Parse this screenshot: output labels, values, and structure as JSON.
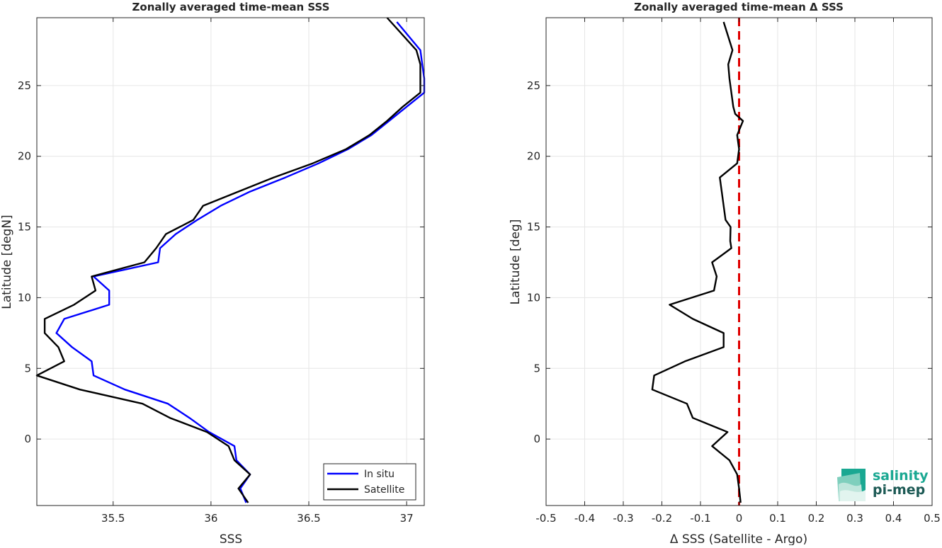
{
  "chart_data": [
    {
      "type": "line",
      "title": "Zonally averaged time-mean SSS",
      "xlabel": "SSS",
      "ylabel": "Latitude [degN]",
      "xlim": [
        35.11,
        37.09
      ],
      "ylim": [
        -4.7,
        29.8
      ],
      "xticks": [
        35.5,
        36,
        36.5,
        37
      ],
      "xtick_labels": [
        "35.5",
        "36",
        "36.5",
        "37"
      ],
      "yticks": [
        0,
        5,
        10,
        15,
        20,
        25
      ],
      "ytick_labels": [
        "0",
        "5",
        "10",
        "15",
        "20",
        "25"
      ],
      "grid": true,
      "legend": "bottom-right",
      "series": [
        {
          "name": "In situ",
          "color": "#0000ff",
          "points": [
            [
              36.95,
              29.5
            ],
            [
              37.07,
              27.5
            ],
            [
              37.08,
              26.5
            ],
            [
              37.09,
              25.5
            ],
            [
              37.09,
              24.5
            ],
            [
              37.0,
              23.5
            ],
            [
              36.91,
              22.5
            ],
            [
              36.82,
              21.5
            ],
            [
              36.7,
              20.5
            ],
            [
              36.55,
              19.5
            ],
            [
              36.38,
              18.5
            ],
            [
              36.2,
              17.5
            ],
            [
              36.05,
              16.5
            ],
            [
              35.93,
              15.5
            ],
            [
              35.82,
              14.5
            ],
            [
              35.74,
              13.5
            ],
            [
              35.73,
              12.5
            ],
            [
              35.4,
              11.5
            ],
            [
              35.48,
              10.5
            ],
            [
              35.48,
              9.5
            ],
            [
              35.25,
              8.5
            ],
            [
              35.21,
              7.5
            ],
            [
              35.29,
              6.5
            ],
            [
              35.39,
              5.5
            ],
            [
              35.4,
              4.5
            ],
            [
              35.56,
              3.5
            ],
            [
              35.78,
              2.5
            ],
            [
              35.89,
              1.5
            ],
            [
              35.99,
              0.5
            ],
            [
              36.12,
              -0.5
            ],
            [
              36.13,
              -1.5
            ],
            [
              36.2,
              -2.5
            ],
            [
              36.15,
              -3.5
            ],
            [
              36.18,
              -4.5
            ]
          ]
        },
        {
          "name": "Satellite",
          "color": "#000000",
          "points": [
            [
              36.9,
              29.8
            ],
            [
              37.05,
              27.5
            ],
            [
              37.07,
              26.5
            ],
            [
              37.07,
              25.5
            ],
            [
              37.07,
              24.5
            ],
            [
              36.98,
              23.5
            ],
            [
              36.9,
              22.5
            ],
            [
              36.81,
              21.5
            ],
            [
              36.69,
              20.5
            ],
            [
              36.52,
              19.5
            ],
            [
              36.32,
              18.5
            ],
            [
              36.14,
              17.5
            ],
            [
              35.96,
              16.5
            ],
            [
              35.91,
              15.5
            ],
            [
              35.77,
              14.5
            ],
            [
              35.72,
              13.5
            ],
            [
              35.66,
              12.5
            ],
            [
              35.39,
              11.5
            ],
            [
              35.41,
              10.5
            ],
            [
              35.3,
              9.5
            ],
            [
              35.15,
              8.5
            ],
            [
              35.15,
              7.5
            ],
            [
              35.22,
              6.5
            ],
            [
              35.25,
              5.5
            ],
            [
              35.11,
              4.5
            ],
            [
              35.33,
              3.5
            ],
            [
              35.65,
              2.5
            ],
            [
              35.79,
              1.5
            ],
            [
              35.98,
              0.5
            ],
            [
              36.09,
              -0.5
            ],
            [
              36.12,
              -1.5
            ],
            [
              36.2,
              -2.5
            ],
            [
              36.14,
              -3.5
            ],
            [
              36.19,
              -4.5
            ]
          ]
        }
      ]
    },
    {
      "type": "line",
      "title": "Zonally averaged time-mean Δ SSS",
      "xlabel": "Δ SSS (Satellite - Argo)",
      "ylabel": "Latitude [deg]",
      "xlim": [
        -0.5,
        0.5
      ],
      "ylim": [
        -4.7,
        29.8
      ],
      "xticks": [
        -0.5,
        -0.4,
        -0.3,
        -0.2,
        -0.1,
        0,
        0.1,
        0.2,
        0.3,
        0.4,
        0.5
      ],
      "xtick_labels": [
        "-0.5",
        "-0.4",
        "-0.3",
        "-0.2",
        "-0.1",
        "0",
        "0.1",
        "0.2",
        "0.3",
        "0.4",
        "0.5"
      ],
      "yticks": [
        0,
        5,
        10,
        15,
        20,
        25
      ],
      "ytick_labels": [
        "0",
        "5",
        "10",
        "15",
        "20",
        "25"
      ],
      "grid": true,
      "reference_line": {
        "x": 0,
        "color": "#e00000",
        "style": "dashed"
      },
      "series": [
        {
          "color": "#000000",
          "points": [
            [
              -0.04,
              29.5
            ],
            [
              -0.017,
              27.5
            ],
            [
              -0.028,
              26.5
            ],
            [
              -0.025,
              25.5
            ],
            [
              -0.02,
              24.5
            ],
            [
              -0.015,
              23.5
            ],
            [
              -0.01,
              23.0
            ],
            [
              0.01,
              22.5
            ],
            [
              -0.005,
              21.5
            ],
            [
              0.0,
              20.5
            ],
            [
              -0.005,
              19.5
            ],
            [
              -0.05,
              18.5
            ],
            [
              -0.045,
              17.5
            ],
            [
              -0.04,
              16.5
            ],
            [
              -0.035,
              15.5
            ],
            [
              -0.022,
              15.0
            ],
            [
              -0.023,
              14.0
            ],
            [
              -0.02,
              13.5
            ],
            [
              -0.07,
              12.5
            ],
            [
              -0.058,
              11.5
            ],
            [
              -0.065,
              10.5
            ],
            [
              -0.18,
              9.5
            ],
            [
              -0.12,
              8.5
            ],
            [
              -0.04,
              7.5
            ],
            [
              -0.04,
              6.5
            ],
            [
              -0.14,
              5.5
            ],
            [
              -0.22,
              4.5
            ],
            [
              -0.225,
              3.5
            ],
            [
              -0.135,
              2.5
            ],
            [
              -0.12,
              1.5
            ],
            [
              -0.03,
              0.5
            ],
            [
              -0.07,
              -0.5
            ],
            [
              -0.025,
              -1.5
            ],
            [
              -0.005,
              -2.5
            ],
            [
              0.0,
              -3.5
            ],
            [
              0.004,
              -4.5
            ]
          ]
        }
      ]
    }
  ],
  "legend": {
    "items": [
      {
        "label": "In situ",
        "color": "#0000ff"
      },
      {
        "label": "Satellite",
        "color": "#000000"
      }
    ]
  },
  "logo": {
    "line1": "salinity",
    "line2": "pi-mep",
    "colors": {
      "teal": "#1aa892",
      "dark": "#1d5a55",
      "pale": "#bfe6dc"
    }
  }
}
